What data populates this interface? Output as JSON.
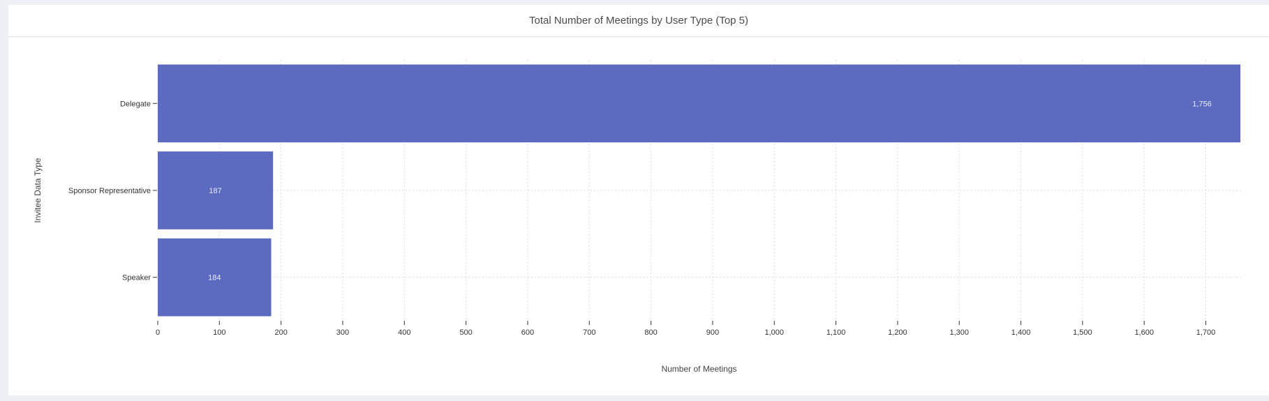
{
  "panel": {
    "title": "Total Number of Meetings by User Type (Top 5)"
  },
  "colors": {
    "bar": "#5c6bc0",
    "grid": "#dcdcdc",
    "bar_label": "#e8ebff"
  },
  "chart_data": {
    "type": "bar",
    "orientation": "horizontal",
    "categories": [
      "Delegate",
      "Sponsor Representative",
      "Speaker"
    ],
    "values": [
      1756,
      187,
      184
    ],
    "value_labels": [
      "1,756",
      "187",
      "184"
    ],
    "xlabel": "Number of Meetings",
    "ylabel": "Invitee Data Type",
    "xlim": [
      0,
      1756
    ],
    "xticks": [
      0,
      100,
      200,
      300,
      400,
      500,
      600,
      700,
      800,
      900,
      1000,
      1100,
      1200,
      1300,
      1400,
      1500,
      1600,
      1700
    ],
    "xtick_labels": [
      "0",
      "100",
      "200",
      "300",
      "400",
      "500",
      "600",
      "700",
      "800",
      "900",
      "1,000",
      "1,100",
      "1,200",
      "1,300",
      "1,400",
      "1,500",
      "1,600",
      "1,700"
    ],
    "grid": true
  }
}
